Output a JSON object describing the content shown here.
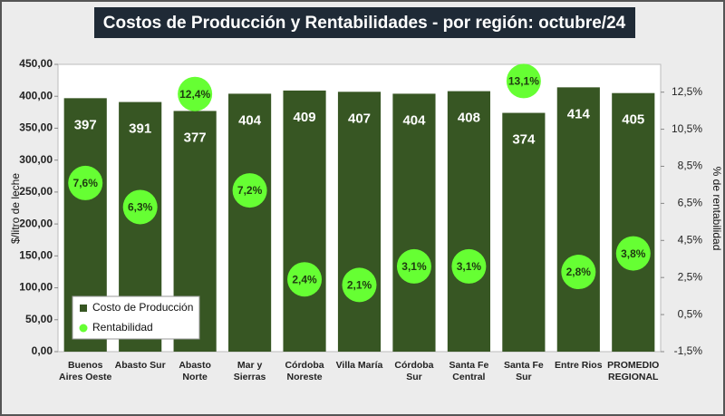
{
  "chart_data": {
    "type": "bar",
    "title": "Costos de Producción y Rentabilidades - por región: octubre/24",
    "ylabel": "$/litro de leche",
    "y2label": "% de rentabilidad",
    "categories": [
      "Buenos Aires Oeste",
      "Abasto Sur",
      "Abasto Norte",
      "Mar y Sierras",
      "Córdoba Noreste",
      "Villa María",
      "Córdoba Sur",
      "Santa Fe Central",
      "Santa Fe Sur",
      "Entre Rios",
      "PROMEDIO REGIONAL"
    ],
    "series": [
      {
        "name": "Costo de Producción",
        "type": "bar",
        "color": "#375623",
        "values": [
          397,
          391,
          377,
          404,
          409,
          407,
          404,
          408,
          374,
          414,
          405
        ]
      },
      {
        "name": "Rentabilidad",
        "type": "scatter",
        "axis": "y2",
        "color": "#66ff33",
        "values": [
          7.6,
          6.3,
          12.4,
          7.2,
          2.4,
          2.1,
          3.1,
          3.1,
          13.1,
          2.8,
          3.8
        ],
        "value_labels": [
          "7,6%",
          "6,3%",
          "12,4%",
          "7,2%",
          "2,4%",
          "2,1%",
          "3,1%",
          "3,1%",
          "13,1%",
          "2,8%",
          "3,8%"
        ]
      }
    ],
    "ylim": [
      0,
      450
    ],
    "yticks": [
      {
        "value": 0,
        "label": "0,00"
      },
      {
        "value": 50,
        "label": "50,00"
      },
      {
        "value": 100,
        "label": "100,00"
      },
      {
        "value": 150,
        "label": "150,00"
      },
      {
        "value": 200,
        "label": "200,00"
      },
      {
        "value": 250,
        "label": "250,00"
      },
      {
        "value": 300,
        "label": "300,00"
      },
      {
        "value": 350,
        "label": "350,00"
      },
      {
        "value": 400,
        "label": "400,00"
      },
      {
        "value": 450,
        "label": "450,00"
      }
    ],
    "y2lim": [
      -1.5,
      14
    ],
    "y2ticks": [
      {
        "value": -1.5,
        "label": "-1,5%"
      },
      {
        "value": 0.5,
        "label": "0,5%"
      },
      {
        "value": 2.5,
        "label": "2,5%"
      },
      {
        "value": 4.5,
        "label": "4,5%"
      },
      {
        "value": 6.5,
        "label": "6,5%"
      },
      {
        "value": 8.5,
        "label": "8,5%"
      },
      {
        "value": 10.5,
        "label": "10,5%"
      },
      {
        "value": 12.5,
        "label": "12,5%"
      }
    ],
    "grid": false,
    "legend": "lower left"
  }
}
